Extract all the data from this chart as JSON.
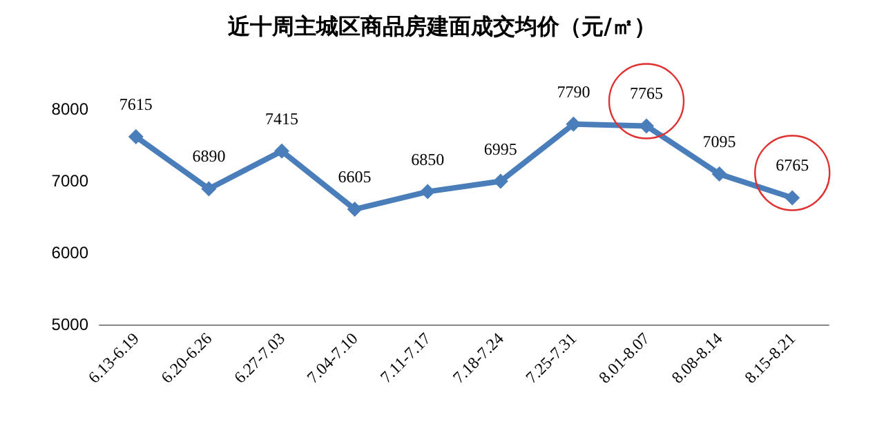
{
  "chart_data": {
    "type": "line",
    "title": "近十周主城区商品房建面成交均价（元/㎡）",
    "categories": [
      "6.13-6.19",
      "6.20-6.26",
      "6.27-7.03",
      "7.04-7.10",
      "7.11-7.17",
      "7.18-7.24",
      "7.25-7.31",
      "8.01-8.07",
      "8.08-8.14",
      "8.15-8.21"
    ],
    "series": [
      {
        "color": "#4a7ebb",
        "values": [
          7615,
          6890,
          7415,
          6605,
          6850,
          6995,
          7790,
          7765,
          7095,
          6765
        ]
      }
    ],
    "ylim": [
      5000,
      8000
    ],
    "yticks": [
      5000,
      6000,
      7000,
      8000
    ],
    "grid": false,
    "marker": "diamond",
    "line_style": "solid",
    "data_labels": true
  }
}
